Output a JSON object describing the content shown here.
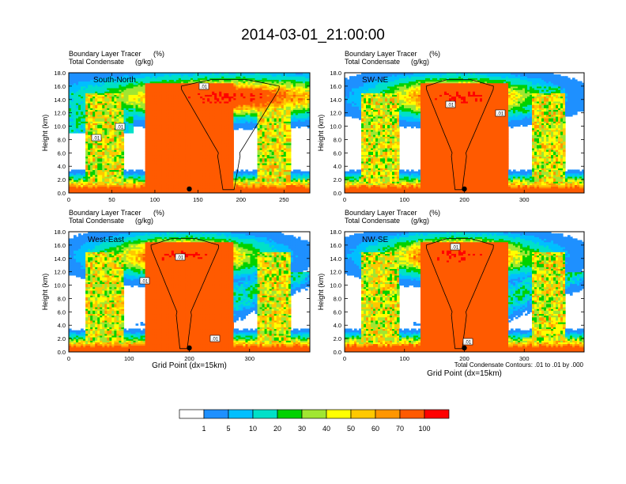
{
  "title": "2014-03-01_21:00:00",
  "chart_data": [
    {
      "type": "heatmap",
      "variable_label": "Boundary Layer Tracer",
      "variable_units": "(%)",
      "contour_label": "Total Condensate",
      "contour_units": "(g/kg)",
      "cross_section": "South-North",
      "ylabel": "Height (km)",
      "xlabel": "",
      "xlim": [
        0,
        280
      ],
      "ylim": [
        0,
        18
      ],
      "xticks": [
        0,
        50,
        100,
        150,
        200,
        250
      ],
      "yticks": [
        "0.0",
        "2.0",
        "4.0",
        "6.0",
        "8.0",
        "10.0",
        "12.0",
        "14.0",
        "16.0",
        "18.0"
      ],
      "contour_tags": [
        ".01",
        ".01",
        ".01"
      ],
      "storm_center_x": 140
    },
    {
      "type": "heatmap",
      "variable_label": "Boundary Layer Tracer",
      "variable_units": "(%)",
      "contour_label": "Total Condensate",
      "contour_units": "(g/kg)",
      "cross_section": "SW-NE",
      "ylabel": "Height (km)",
      "xlabel": "",
      "xlim": [
        0,
        400
      ],
      "ylim": [
        0,
        18
      ],
      "xticks": [
        0,
        100,
        200,
        300
      ],
      "yticks": [
        "0.0",
        "2.0",
        "4.0",
        "6.0",
        "8.0",
        "10.0",
        "12.0",
        "14.0",
        "16.0",
        "18.0"
      ],
      "contour_tags": [
        ".01",
        ".01"
      ],
      "storm_center_x": 200
    },
    {
      "type": "heatmap",
      "variable_label": "Boundary Layer Tracer",
      "variable_units": "(%)",
      "contour_label": "Total Condensate",
      "contour_units": "(g/kg)",
      "cross_section": "West-East",
      "ylabel": "Height (km)",
      "xlabel": "Grid Point (dx=15km)",
      "xlim": [
        0,
        400
      ],
      "ylim": [
        0,
        18
      ],
      "xticks": [
        0,
        100,
        200,
        300
      ],
      "yticks": [
        "0.0",
        "2.0",
        "4.0",
        "6.0",
        "8.0",
        "10.0",
        "12.0",
        "14.0",
        "16.0",
        "18.0"
      ],
      "contour_tags": [
        ".01",
        ".01",
        ".01"
      ],
      "storm_center_x": 200
    },
    {
      "type": "heatmap",
      "variable_label": "Boundary Layer Tracer",
      "variable_units": "(%)",
      "contour_label": "Total Condensate",
      "contour_units": "(g/kg)",
      "cross_section": "NW-SE",
      "ylabel": "Height (km)",
      "xlabel": "Grid Point (dx=15km)",
      "xlim": [
        0,
        400
      ],
      "ylim": [
        0,
        18
      ],
      "xticks": [
        0,
        100,
        200,
        300
      ],
      "yticks": [
        "0.0",
        "2.0",
        "4.0",
        "6.0",
        "8.0",
        "10.0",
        "12.0",
        "14.0",
        "16.0",
        "18.0"
      ],
      "contour_tags": [
        ".01",
        ".01"
      ],
      "storm_center_x": 200
    }
  ],
  "contour_note": "Total Condensate Contours: .01 to .01 by .000",
  "colorbar": {
    "levels": [
      "1",
      "5",
      "10",
      "20",
      "30",
      "40",
      "50",
      "60",
      "70",
      "100"
    ],
    "colors": [
      "#ffffff",
      "#1e90ff",
      "#00bfff",
      "#00e0c8",
      "#00d200",
      "#a0e632",
      "#ffff00",
      "#ffc800",
      "#ff9600",
      "#ff5a00",
      "#ff0000"
    ]
  }
}
